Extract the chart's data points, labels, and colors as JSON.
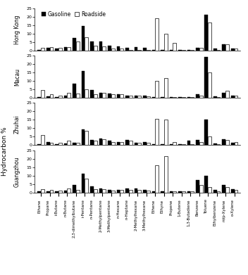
{
  "compounds": [
    "Ethane",
    "Propane",
    "i-Butane",
    "n-Butane",
    "2,3-dimethylbutane",
    "i-Pentane",
    "n-Pentane",
    "2-Methylpentane",
    "3-Methylpentane",
    "n-Hexane",
    "n-Heptane",
    "2-Methylhexane",
    "3-Methylhexane",
    "Ethene",
    "Ethyne",
    "Propene",
    "1-Butene",
    "1,3-Butadiene",
    "Benzene",
    "Toluene",
    "Ethylbenzene",
    "m/p-Xylene",
    "o-Xylene"
  ],
  "cities": [
    "Hong Kong",
    "Macau",
    "Zhuhai",
    "Guangzhou"
  ],
  "gasoline": [
    [
      0.5,
      1.5,
      1.0,
      2.0,
      7.5,
      14.5,
      5.5,
      5.5,
      3.0,
      2.5,
      1.5,
      2.0,
      1.5,
      0.5,
      0.5,
      0.5,
      0.5,
      0.5,
      1.5,
      21.0,
      1.0,
      3.5,
      1.0
    ],
    [
      0.5,
      1.0,
      0.5,
      1.5,
      8.5,
      16.0,
      4.5,
      3.0,
      2.5,
      2.0,
      1.5,
      1.5,
      1.5,
      0.5,
      0.5,
      0.5,
      0.5,
      0.5,
      2.0,
      24.0,
      1.0,
      3.0,
      1.5
    ],
    [
      0.5,
      2.0,
      0.5,
      1.0,
      1.5,
      9.5,
      3.0,
      4.0,
      2.5,
      2.0,
      3.0,
      1.5,
      2.0,
      0.5,
      0.5,
      0.5,
      0.5,
      2.5,
      3.0,
      15.0,
      1.0,
      3.5,
      1.5
    ],
    [
      0.5,
      0.5,
      0.5,
      1.0,
      4.5,
      11.0,
      3.5,
      2.5,
      1.5,
      1.5,
      2.5,
      2.5,
      1.5,
      0.5,
      0.5,
      0.5,
      0.5,
      0.5,
      7.5,
      10.0,
      1.5,
      4.5,
      2.0
    ]
  ],
  "roadside": [
    [
      1.5,
      2.0,
      1.5,
      2.0,
      5.5,
      8.0,
      3.0,
      2.5,
      1.0,
      1.0,
      0.5,
      0.5,
      0.5,
      19.0,
      10.0,
      4.5,
      0.5,
      0.5,
      1.5,
      16.5,
      0.5,
      3.5,
      1.0
    ],
    [
      4.5,
      2.0,
      1.5,
      3.0,
      2.5,
      5.0,
      2.0,
      3.0,
      2.0,
      2.0,
      1.5,
      1.5,
      1.0,
      10.0,
      11.5,
      0.5,
      0.5,
      0.5,
      1.5,
      15.0,
      0.5,
      4.0,
      1.5
    ],
    [
      6.0,
      1.5,
      1.5,
      2.5,
      1.5,
      8.5,
      2.5,
      3.5,
      2.0,
      2.0,
      2.5,
      1.5,
      1.5,
      15.5,
      15.0,
      2.0,
      0.5,
      0.5,
      2.0,
      5.0,
      0.5,
      3.0,
      2.0
    ],
    [
      2.0,
      1.5,
      1.0,
      2.5,
      1.5,
      8.0,
      2.0,
      2.0,
      1.0,
      1.5,
      1.5,
      1.5,
      1.0,
      16.0,
      21.5,
      0.5,
      0.5,
      0.5,
      4.5,
      3.0,
      0.5,
      3.0,
      1.5
    ]
  ],
  "ylim": [
    0,
    25
  ],
  "yticks": [
    0,
    5,
    10,
    15,
    20,
    25
  ],
  "ylabel": "Hydrocarbon %",
  "legend_labels": [
    "Gasoline",
    "Roadside"
  ],
  "gasoline_color": "#000000",
  "roadside_color": "#ffffff",
  "bar_edge_color": "#000000",
  "background_color": "#ffffff"
}
